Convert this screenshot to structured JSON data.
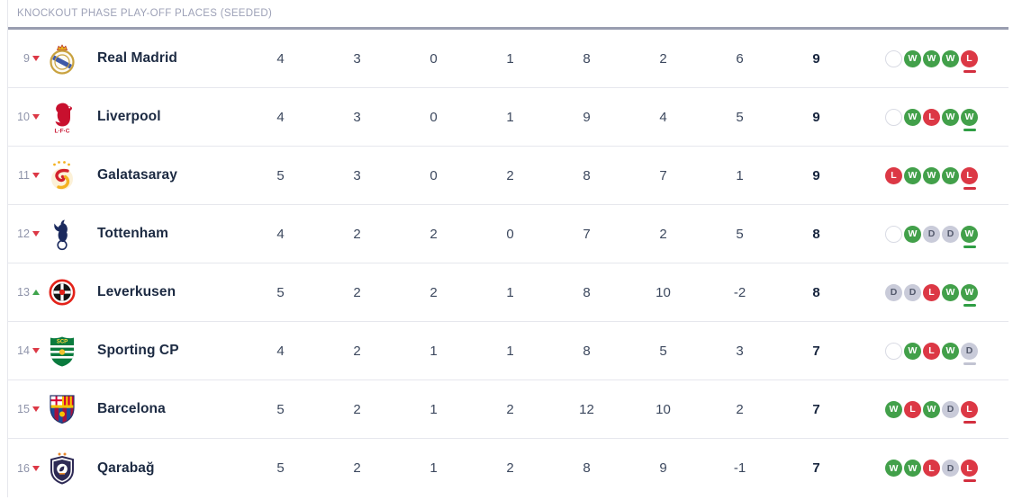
{
  "header": {
    "title": "KNOCKOUT PHASE PLAY-OFF PLACES (SEEDED)"
  },
  "colors": {
    "win": "#42a04a",
    "loss": "#dc3845",
    "draw_bg": "#c9cbd9",
    "draw_text": "#555b6e",
    "empty_border": "#d9dbe4",
    "movement_up": "#3fa44c",
    "movement_down": "#dc3845",
    "points_text": "#16243d",
    "header_rule": "#999db0"
  },
  "table": {
    "rows": [
      {
        "pos": "9",
        "movement": "down",
        "team": "Real Madrid",
        "crest": "real-madrid-crest",
        "played": "4",
        "won": "3",
        "drawn": "0",
        "lost": "1",
        "gf": "8",
        "ga": "2",
        "gd": "6",
        "pts": "9",
        "form": [
          "E",
          "W",
          "W",
          "W",
          "L"
        ]
      },
      {
        "pos": "10",
        "movement": "down",
        "team": "Liverpool",
        "crest": "liverpool-crest",
        "played": "4",
        "won": "3",
        "drawn": "0",
        "lost": "1",
        "gf": "9",
        "ga": "4",
        "gd": "5",
        "pts": "9",
        "form": [
          "E",
          "W",
          "L",
          "W",
          "W"
        ]
      },
      {
        "pos": "11",
        "movement": "down",
        "team": "Galatasaray",
        "crest": "galatasaray-crest",
        "played": "5",
        "won": "3",
        "drawn": "0",
        "lost": "2",
        "gf": "8",
        "ga": "7",
        "gd": "1",
        "pts": "9",
        "form": [
          "L",
          "W",
          "W",
          "W",
          "L"
        ]
      },
      {
        "pos": "12",
        "movement": "down",
        "team": "Tottenham",
        "crest": "tottenham-crest",
        "played": "4",
        "won": "2",
        "drawn": "2",
        "lost": "0",
        "gf": "7",
        "ga": "2",
        "gd": "5",
        "pts": "8",
        "form": [
          "E",
          "W",
          "D",
          "D",
          "W"
        ]
      },
      {
        "pos": "13",
        "movement": "up",
        "team": "Leverkusen",
        "crest": "leverkusen-crest",
        "played": "5",
        "won": "2",
        "drawn": "2",
        "lost": "1",
        "gf": "8",
        "ga": "10",
        "gd": "-2",
        "pts": "8",
        "form": [
          "D",
          "D",
          "L",
          "W",
          "W"
        ]
      },
      {
        "pos": "14",
        "movement": "down",
        "team": "Sporting CP",
        "crest": "sporting-cp-crest",
        "played": "4",
        "won": "2",
        "drawn": "1",
        "lost": "1",
        "gf": "8",
        "ga": "5",
        "gd": "3",
        "pts": "7",
        "form": [
          "E",
          "W",
          "L",
          "W",
          "D"
        ]
      },
      {
        "pos": "15",
        "movement": "down",
        "team": "Barcelona",
        "crest": "barcelona-crest",
        "played": "5",
        "won": "2",
        "drawn": "1",
        "lost": "2",
        "gf": "12",
        "ga": "10",
        "gd": "2",
        "pts": "7",
        "form": [
          "W",
          "L",
          "W",
          "D",
          "L"
        ]
      },
      {
        "pos": "16",
        "movement": "down",
        "team": "Qarabağ",
        "crest": "qarabag-crest",
        "played": "5",
        "won": "2",
        "drawn": "1",
        "lost": "2",
        "gf": "8",
        "ga": "9",
        "gd": "-1",
        "pts": "7",
        "form": [
          "W",
          "W",
          "L",
          "D",
          "L"
        ]
      }
    ]
  }
}
